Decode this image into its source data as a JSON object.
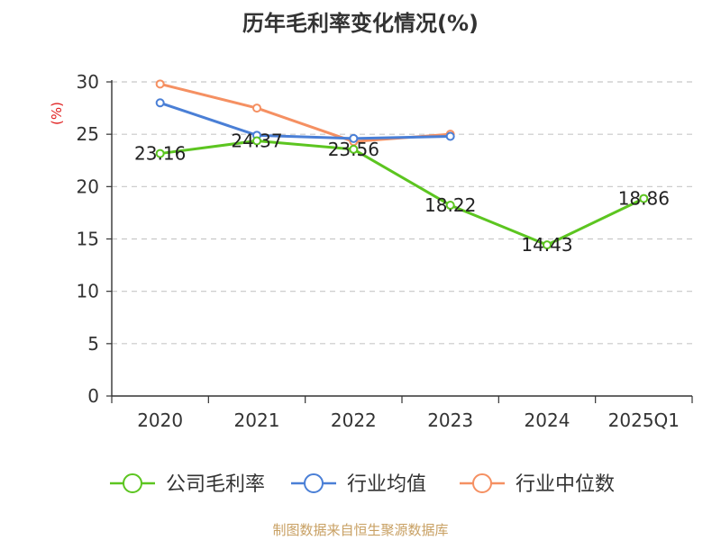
{
  "chart_data": {
    "type": "line",
    "title": "历年毛利率变化情况(%)",
    "ylabel": "(%)",
    "categories": [
      "2020",
      "2021",
      "2022",
      "2023",
      "2024",
      "2025Q1"
    ],
    "ylim": [
      0,
      30
    ],
    "yticks": [
      "0",
      "5",
      "10",
      "15",
      "20",
      "25",
      "30"
    ],
    "grid": true,
    "legend_position": "bottom",
    "series": [
      {
        "name": "公司毛利率",
        "color": "#5cc520",
        "values": [
          23.16,
          24.37,
          23.56,
          18.22,
          14.43,
          18.86
        ],
        "labels": [
          "23.16",
          "24.37",
          "23.56",
          "18.22",
          "14.43",
          "18.86"
        ]
      },
      {
        "name": "行业均值",
        "color": "#4a7fd6",
        "values": [
          28.0,
          24.9,
          24.6,
          24.8,
          null,
          null
        ]
      },
      {
        "name": "行业中位数",
        "color": "#f59062",
        "values": [
          29.8,
          27.5,
          24.3,
          25.0,
          null,
          null
        ]
      }
    ]
  },
  "source": "制图数据来自恒生聚源数据库"
}
